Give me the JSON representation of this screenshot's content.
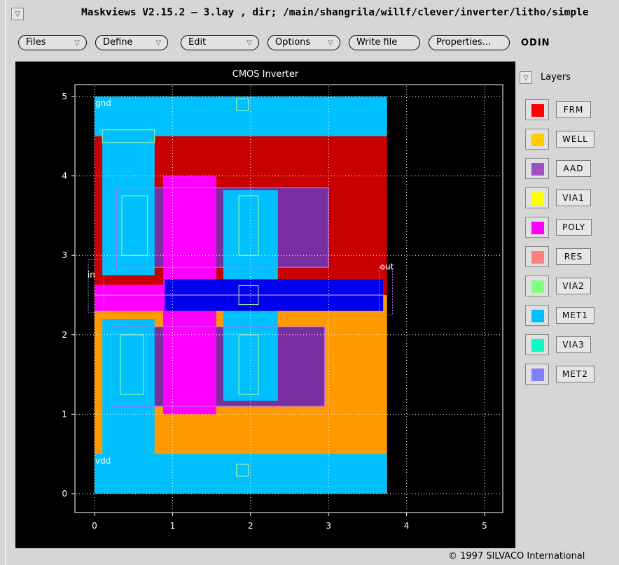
{
  "window": {
    "title": "Maskviews V2.15.2 – 3.lay , dir; /main/shangrila/willf/clever/inverter/litho/simple",
    "menu_glyph": "▽"
  },
  "toolbar": {
    "items": [
      {
        "label": "Files",
        "dropdown": true
      },
      {
        "label": "Define",
        "dropdown": true
      },
      {
        "label": "Edit",
        "dropdown": true
      },
      {
        "label": "Options",
        "dropdown": true
      },
      {
        "label": "Write file",
        "dropdown": false
      },
      {
        "label": "Properties...",
        "dropdown": false
      }
    ],
    "dropdown_glyph": "▽",
    "host_label": "ODIN"
  },
  "plot": {
    "title": "CMOS Inverter",
    "x_ticks": [
      "0",
      "1",
      "2",
      "3",
      "4",
      "5"
    ],
    "y_ticks": [
      "0",
      "1",
      "2",
      "3",
      "4",
      "5"
    ],
    "labels": [
      {
        "text": "gnd",
        "x": 0.0,
        "y": 4.88
      },
      {
        "text": "vdd",
        "x": 0.0,
        "y": 0.38
      },
      {
        "text": "in",
        "x": -0.1,
        "y": 2.72
      },
      {
        "text": "out",
        "x": 3.65,
        "y": 2.82
      }
    ]
  },
  "layers_panel": {
    "toggle_glyph": "▽",
    "header": "Layers",
    "layers": [
      {
        "name": "FRM",
        "color": "#ff0000"
      },
      {
        "name": "WELL",
        "color": "#ffcc00"
      },
      {
        "name": "AAD",
        "color": "#a050c0"
      },
      {
        "name": "VIA1",
        "color": "#ffff00"
      },
      {
        "name": "POLY",
        "color": "#ff00ff"
      },
      {
        "name": "RES",
        "color": "#ff8080"
      },
      {
        "name": "VIA2",
        "color": "#80ff80"
      },
      {
        "name": "MET1",
        "color": "#00c0ff"
      },
      {
        "name": "VIA3",
        "color": "#00ffc0"
      },
      {
        "name": "MET2",
        "color": "#8080ff"
      }
    ]
  },
  "chart_data": {
    "type": "layout",
    "title": "CMOS Inverter",
    "xlim": [
      -0.25,
      5.2
    ],
    "ylim": [
      -0.25,
      5.2
    ],
    "grid": true,
    "shapes": [
      {
        "layer": "WELL",
        "color": "#ff9900",
        "rect": [
          0.0,
          0.0,
          3.75,
          2.5
        ]
      },
      {
        "layer": "FRM",
        "color": "#c80000",
        "rect": [
          0.0,
          2.5,
          3.75,
          4.6
        ]
      },
      {
        "layer": "MET1",
        "color": "#00c0ff",
        "rect": [
          0.0,
          4.5,
          3.75,
          5.0
        ]
      },
      {
        "layer": "MET1",
        "color": "#00c0ff",
        "rect": [
          0.0,
          0.0,
          3.75,
          0.5
        ]
      },
      {
        "layer": "AAD",
        "color": "#7a2fa0",
        "rect": [
          0.28,
          2.85,
          3.0,
          3.85
        ]
      },
      {
        "layer": "AAD",
        "color": "#7a2fa0",
        "rect": [
          0.22,
          1.1,
          2.95,
          2.1
        ]
      },
      {
        "layer": "MET1",
        "color": "#00c0ff",
        "rect": [
          0.1,
          2.75,
          0.77,
          4.5
        ]
      },
      {
        "layer": "MET1",
        "color": "#00c0ff",
        "rect": [
          0.1,
          0.5,
          0.77,
          2.2
        ]
      },
      {
        "layer": "MET1",
        "color": "#00c0ff",
        "rect": [
          1.65,
          1.17,
          2.35,
          3.82
        ]
      },
      {
        "layer": "POLY",
        "color": "#ff00ff",
        "rect": [
          0.88,
          1.0,
          1.56,
          4.0
        ]
      },
      {
        "layer": "POLY",
        "color": "#ff00ff",
        "rect": [
          0.0,
          2.3,
          0.93,
          2.63
        ]
      },
      {
        "layer": "MET2",
        "color": "#0000ee",
        "rect": [
          0.9,
          2.3,
          3.7,
          2.7
        ]
      }
    ]
  }
}
